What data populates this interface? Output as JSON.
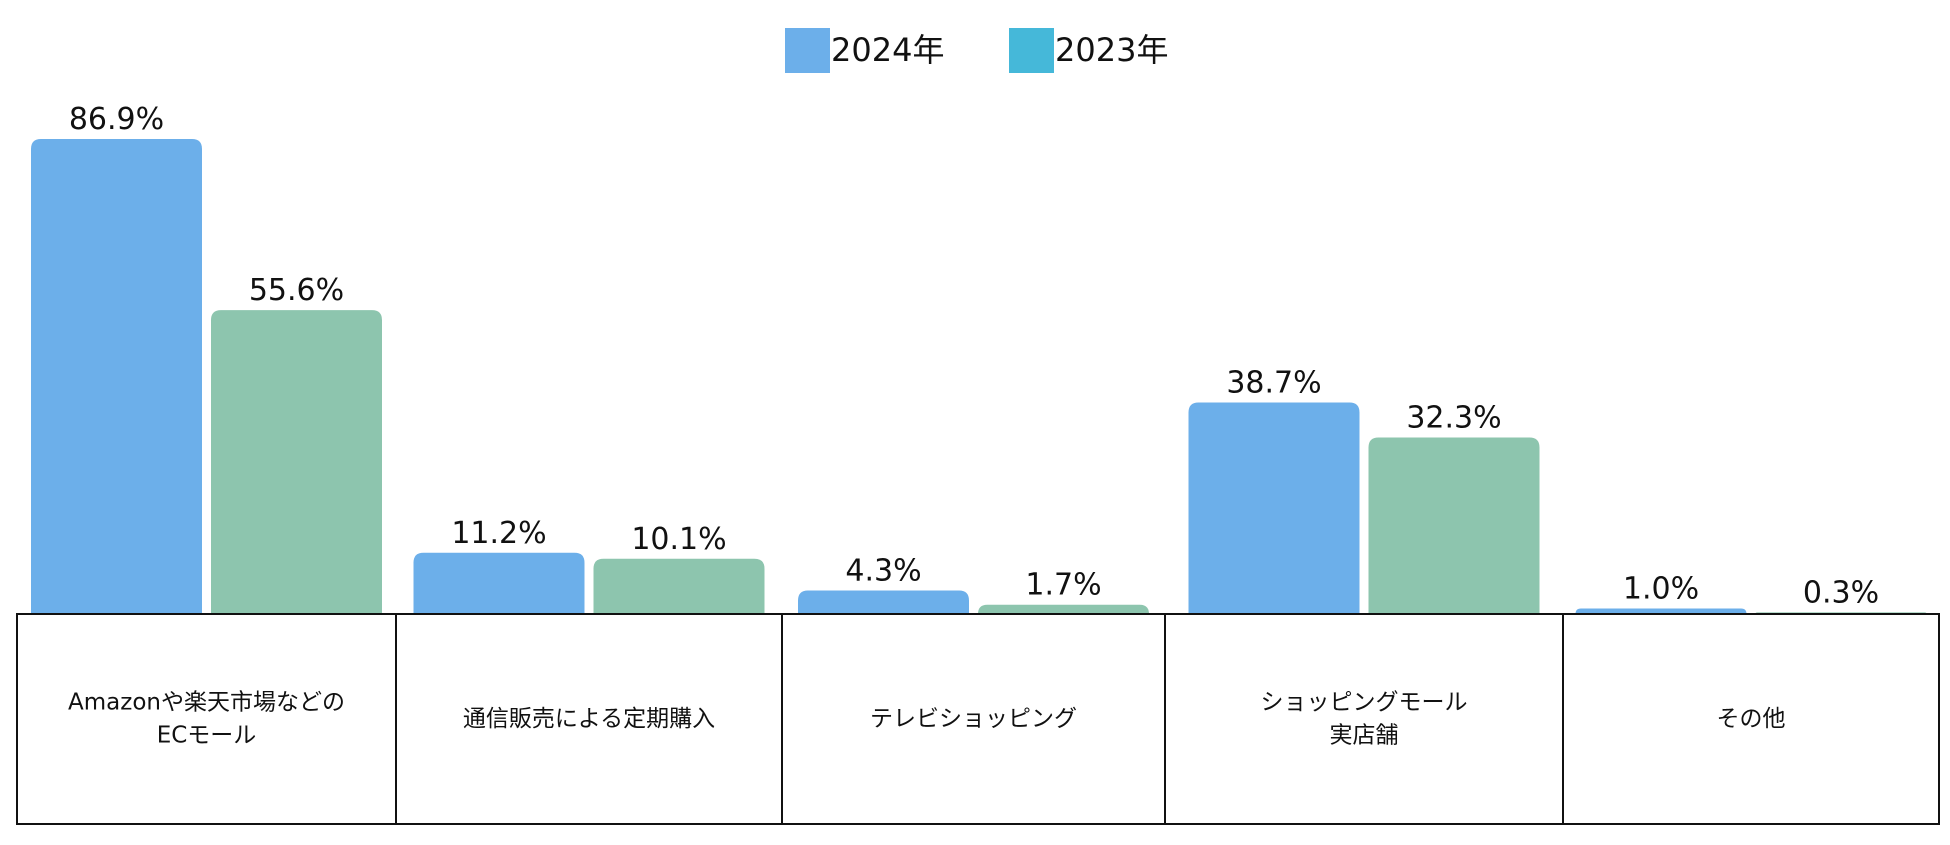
{
  "chart_data": {
    "type": "bar",
    "title": "",
    "xlabel": "",
    "ylabel": "",
    "ylim": [
      0,
      90
    ],
    "grid": false,
    "legend_position": "top-center",
    "value_suffix": "%",
    "categories": [
      [
        "Amazonや楽天市場などの",
        "ECモール"
      ],
      [
        "通信販売による定期購入"
      ],
      [
        "テレビショッピング"
      ],
      [
        "ショッピングモール",
        "実店舗"
      ],
      [
        "その他"
      ]
    ],
    "series": [
      {
        "name": "2024年",
        "color": "#6CAFEA",
        "legend_color": "#6CAFEA",
        "values": [
          86.9,
          11.2,
          4.3,
          38.7,
          1.0
        ]
      },
      {
        "name": "2023年",
        "color": "#8DC5AE",
        "legend_color": "#45B8D9",
        "values": [
          55.6,
          10.1,
          1.7,
          32.3,
          0.3
        ]
      }
    ]
  }
}
